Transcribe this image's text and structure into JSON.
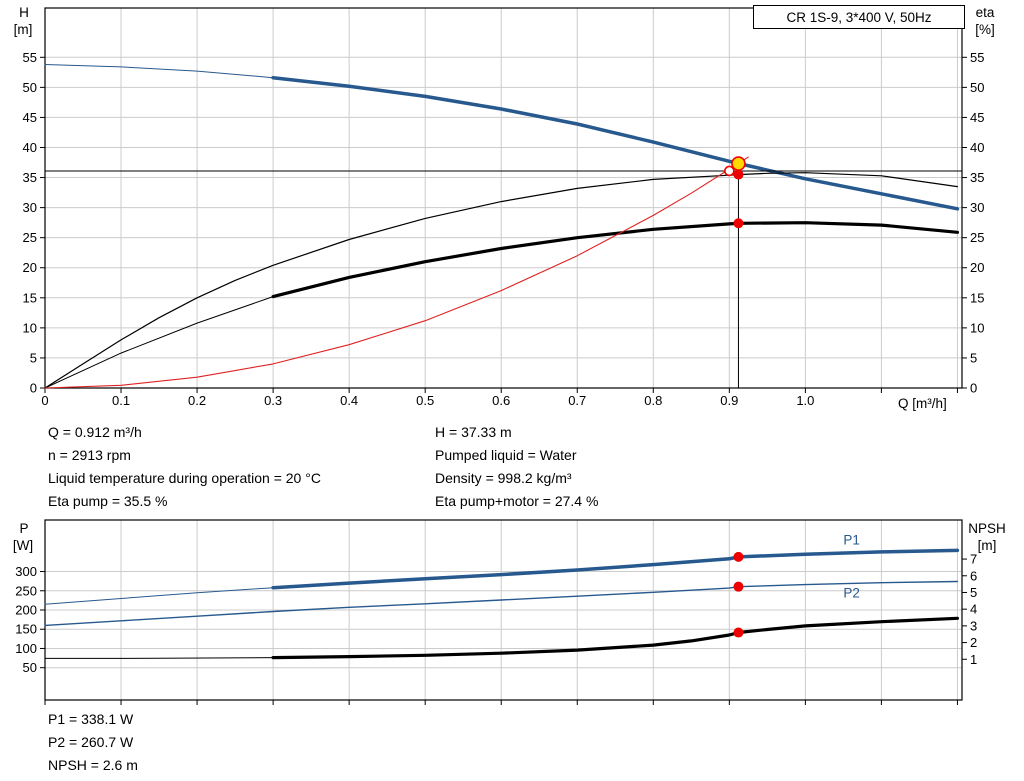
{
  "title_box": "CR 1S-9, 3*400 V, 50Hz",
  "top_chart_labels": {
    "y_left_title": "H",
    "y_left_unit": "[m]",
    "y_right_title": "eta",
    "y_right_unit": "[%]",
    "x_axis_title": "Q [m³/h]"
  },
  "bottom_chart_labels": {
    "y_left_title": "P",
    "y_left_unit": "[W]",
    "y_right_title": "NPSH",
    "y_right_unit": "[m]"
  },
  "operating_point": {
    "left_column": [
      "Q = 0.912 m³/h",
      "n = 2913 rpm",
      "Liquid temperature during operation = 20 °C",
      "Eta pump = 35.5 %"
    ],
    "right_column": [
      "H = 37.33 m",
      "Pumped liquid = Water",
      "Density = 998.2 kg/m³",
      "Eta pump+motor = 27.4 %"
    ],
    "bottom_lines": [
      "P1 = 338.1 W",
      "P2 = 260.7 W",
      "NPSH = 2.6 m"
    ]
  },
  "colors": {
    "curve_blue": "#27598e",
    "curve_black": "#000000",
    "curve_red": "#e02222",
    "dot_red": "#ee0000",
    "duty_yellow": "#ffd800",
    "grid": "#cccccc",
    "frame": "#000000"
  },
  "chart_data": [
    {
      "type": "line",
      "title": "CR 1S-9, 3*400 V, 50Hz",
      "xlabel": "Q [m³/h]",
      "ylabel_left": "H [m]",
      "ylabel_right": "eta [%]",
      "grid": true,
      "x": {
        "min": 0,
        "max": 1.206,
        "ticks": [
          0,
          0.1,
          0.2,
          0.3,
          0.4,
          0.5,
          0.6,
          0.7,
          0.8,
          0.9,
          1.0,
          1.1,
          1.2
        ],
        "tick_labels": [
          "0",
          "0.1",
          "0.2",
          "0.3",
          "0.4",
          "0.5",
          "0.6",
          "0.7",
          "0.8",
          "0.9",
          "1.0",
          "",
          ""
        ]
      },
      "y_left": {
        "min": 0,
        "max": 63.2,
        "ticks": [
          0,
          5,
          10,
          15,
          20,
          25,
          30,
          35,
          40,
          45,
          50,
          55
        ]
      },
      "y_right": {
        "min": 0,
        "max": 63.2,
        "ticks": [
          0,
          5,
          10,
          15,
          20,
          25,
          30,
          35,
          40,
          45,
          50,
          55
        ]
      },
      "series": [
        {
          "name": "head-out-of-range",
          "axis": "left",
          "color": "#27598e",
          "width": 1,
          "points": [
            [
              0,
              53.8
            ],
            [
              0.1,
              53.4
            ],
            [
              0.2,
              52.7
            ],
            [
              0.3,
              51.6
            ]
          ]
        },
        {
          "name": "head",
          "axis": "left",
          "color": "#27598e",
          "width": 3.5,
          "points": [
            [
              0.3,
              51.6
            ],
            [
              0.4,
              50.2
            ],
            [
              0.5,
              48.5
            ],
            [
              0.6,
              46.4
            ],
            [
              0.7,
              43.9
            ],
            [
              0.8,
              40.9
            ],
            [
              0.9,
              37.7
            ],
            [
              0.912,
              37.33
            ],
            [
              1.0,
              34.8
            ],
            [
              1.1,
              32.3
            ],
            [
              1.2,
              29.8
            ]
          ]
        },
        {
          "name": "eta-pump",
          "axis": "right",
          "color": "#000000",
          "width": 1.2,
          "points": [
            [
              0,
              0
            ],
            [
              0.05,
              4
            ],
            [
              0.1,
              8
            ],
            [
              0.15,
              11.7
            ],
            [
              0.2,
              15
            ],
            [
              0.25,
              17.9
            ],
            [
              0.3,
              20.4
            ],
            [
              0.4,
              24.7
            ],
            [
              0.5,
              28.2
            ],
            [
              0.6,
              31.0
            ],
            [
              0.7,
              33.2
            ],
            [
              0.8,
              34.7
            ],
            [
              0.9,
              35.4
            ],
            [
              0.912,
              35.5
            ],
            [
              0.95,
              35.7
            ],
            [
              1.0,
              35.8
            ],
            [
              1.1,
              35.3
            ],
            [
              1.2,
              33.5
            ]
          ]
        },
        {
          "name": "eta-pump-motor-out-of-range",
          "axis": "right",
          "color": "#000000",
          "width": 1,
          "points": [
            [
              0,
              0
            ],
            [
              0.1,
              5.8
            ],
            [
              0.2,
              10.8
            ],
            [
              0.3,
              15.2
            ]
          ]
        },
        {
          "name": "eta-pump-motor",
          "axis": "right",
          "color": "#000000",
          "width": 3.2,
          "points": [
            [
              0.3,
              15.2
            ],
            [
              0.4,
              18.4
            ],
            [
              0.5,
              21.0
            ],
            [
              0.6,
              23.2
            ],
            [
              0.7,
              25.0
            ],
            [
              0.8,
              26.4
            ],
            [
              0.9,
              27.3
            ],
            [
              0.912,
              27.4
            ],
            [
              1.0,
              27.5
            ],
            [
              1.1,
              27.1
            ],
            [
              1.2,
              25.9
            ]
          ]
        },
        {
          "name": "system-curve",
          "axis": "left",
          "color": "#e02222",
          "width": 1.1,
          "points": [
            [
              0,
              0
            ],
            [
              0.1,
              0.45
            ],
            [
              0.2,
              1.8
            ],
            [
              0.3,
              4.0
            ],
            [
              0.4,
              7.2
            ],
            [
              0.5,
              11.2
            ],
            [
              0.6,
              16.2
            ],
            [
              0.7,
              22.0
            ],
            [
              0.8,
              28.7
            ],
            [
              0.85,
              32.4
            ],
            [
              0.9,
              36.4
            ],
            [
              0.912,
              37.33
            ],
            [
              0.925,
              38.4
            ]
          ]
        }
      ],
      "ref_lines": [
        {
          "dir": "h",
          "value": 36.1,
          "color": "#000000",
          "width": 1
        },
        {
          "dir": "v",
          "value": 0.912,
          "to": 37.33,
          "color": "#000000",
          "width": 1
        }
      ],
      "markers": [
        {
          "name": "requested-duty-point",
          "x": 0.9,
          "y": 36.1,
          "axis": "left",
          "r": 4.5,
          "fill": "#ffffff",
          "stroke": "#ee0000"
        },
        {
          "name": "actual-duty-point",
          "x": 0.912,
          "y": 37.33,
          "axis": "left",
          "r": 6.5,
          "fill": "#ffd800",
          "stroke": "#ee0000"
        },
        {
          "name": "eta-pump-point",
          "x": 0.912,
          "y": 35.5,
          "axis": "right",
          "r": 5,
          "fill": "#ee0000"
        },
        {
          "name": "eta-pump-motor-point",
          "x": 0.912,
          "y": 27.4,
          "axis": "right",
          "r": 5,
          "fill": "#ee0000"
        }
      ],
      "labels": []
    },
    {
      "type": "line",
      "title": "Power and NPSH curves",
      "xlabel": "",
      "ylabel_left": "P [W]",
      "ylabel_right": "NPSH [m]",
      "grid": true,
      "x": {
        "min": 0,
        "max": 1.206,
        "ticks": [
          0,
          0.1,
          0.2,
          0.3,
          0.4,
          0.5,
          0.6,
          0.7,
          0.8,
          0.9,
          1.0,
          1.1,
          1.2
        ],
        "tick_labels": []
      },
      "y_left": {
        "min": -34,
        "max": 434,
        "ticks": [
          50,
          100,
          150,
          200,
          250,
          300
        ]
      },
      "y_right": {
        "min": -1.44,
        "max": 9.34,
        "ticks": [
          1,
          2,
          3,
          4,
          5,
          6,
          7
        ]
      },
      "series": [
        {
          "name": "p1-out-of-range",
          "axis": "left",
          "color": "#27598e",
          "width": 1,
          "points": [
            [
              0,
              215
            ],
            [
              0.1,
              230
            ],
            [
              0.2,
              245
            ],
            [
              0.3,
              258
            ]
          ]
        },
        {
          "name": "p1",
          "axis": "left",
          "color": "#27598e",
          "width": 3.5,
          "points": [
            [
              0.3,
              258
            ],
            [
              0.4,
              270
            ],
            [
              0.5,
              281
            ],
            [
              0.6,
              292
            ],
            [
              0.7,
              304
            ],
            [
              0.8,
              318
            ],
            [
              0.9,
              333
            ],
            [
              0.912,
              338.1
            ],
            [
              1.0,
              345
            ],
            [
              1.1,
              351
            ],
            [
              1.2,
              355
            ]
          ]
        },
        {
          "name": "p2",
          "axis": "left",
          "color": "#27598e",
          "width": 1.4,
          "points": [
            [
              0,
              160
            ],
            [
              0.1,
              172
            ],
            [
              0.2,
              184
            ],
            [
              0.3,
              196
            ],
            [
              0.4,
              207
            ],
            [
              0.5,
              216
            ],
            [
              0.6,
              226
            ],
            [
              0.7,
              236
            ],
            [
              0.8,
              246
            ],
            [
              0.9,
              257
            ],
            [
              0.912,
              260.7
            ],
            [
              1.0,
              266
            ],
            [
              1.1,
              271
            ],
            [
              1.2,
              274
            ]
          ]
        },
        {
          "name": "npsh-out-of-range",
          "axis": "right",
          "color": "#000000",
          "width": 1,
          "points": [
            [
              0,
              1.05
            ],
            [
              0.15,
              1.06
            ],
            [
              0.3,
              1.1
            ]
          ]
        },
        {
          "name": "npsh",
          "axis": "right",
          "color": "#000000",
          "width": 3.2,
          "points": [
            [
              0.3,
              1.1
            ],
            [
              0.4,
              1.16
            ],
            [
              0.5,
              1.24
            ],
            [
              0.6,
              1.36
            ],
            [
              0.7,
              1.55
            ],
            [
              0.8,
              1.85
            ],
            [
              0.85,
              2.1
            ],
            [
              0.9,
              2.45
            ],
            [
              0.912,
              2.6
            ],
            [
              0.95,
              2.78
            ],
            [
              1.0,
              3.0
            ],
            [
              1.1,
              3.25
            ],
            [
              1.2,
              3.45
            ]
          ]
        }
      ],
      "ref_lines": [],
      "markers": [
        {
          "name": "p1-point",
          "x": 0.912,
          "y": 338.1,
          "axis": "left",
          "r": 5,
          "fill": "#ee0000"
        },
        {
          "name": "p2-point",
          "x": 0.912,
          "y": 260.7,
          "axis": "left",
          "r": 5,
          "fill": "#ee0000"
        },
        {
          "name": "npsh-point",
          "x": 0.912,
          "y": 2.6,
          "axis": "right",
          "r": 5,
          "fill": "#ee0000"
        }
      ],
      "labels": [
        {
          "text": "P1",
          "x": 1.05,
          "y": 370,
          "axis": "left",
          "color": "#27598e"
        },
        {
          "text": "P2",
          "x": 1.05,
          "y": 232,
          "axis": "left",
          "color": "#27598e"
        }
      ]
    }
  ]
}
